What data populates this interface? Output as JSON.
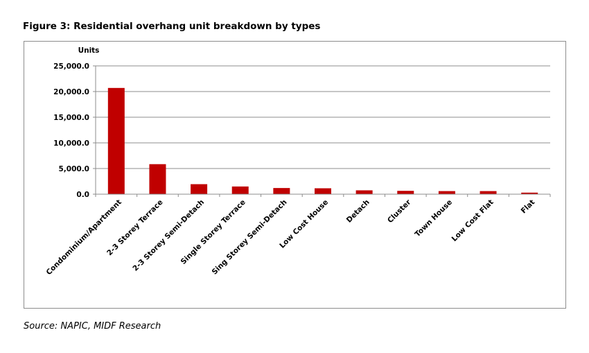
{
  "figure": {
    "title": "Figure 3: Residential overhang unit breakdown by types",
    "source": "Source: NAPIC, MIDF Research"
  },
  "colors": {
    "bar": "#c00000",
    "grid": "#8c8c8c",
    "axis": "#8c8c8c"
  },
  "chart_data": {
    "type": "bar",
    "title": "Figure 3: Residential overhang unit breakdown by types",
    "ylabel": "Units",
    "xlabel": "",
    "ylim": [
      0,
      25000
    ],
    "yticks": [
      "0.0",
      "5,000.0",
      "10,000.0",
      "15,000.0",
      "20,000.0",
      "25,000.0"
    ],
    "grid": true,
    "legend": "none",
    "categories": [
      "Condominium/Apartment",
      "2-3 Storey Terrace",
      "2-3 Storey Semi-Detach",
      "Single Storey Terrace",
      "Sing Storey Semi-Detach",
      "Low Cost House",
      "Detach",
      "Cluster",
      "Town House",
      "Low Cost Flat",
      "Flat"
    ],
    "values": [
      20700,
      5850,
      1950,
      1500,
      1200,
      1150,
      750,
      650,
      600,
      600,
      300
    ]
  }
}
